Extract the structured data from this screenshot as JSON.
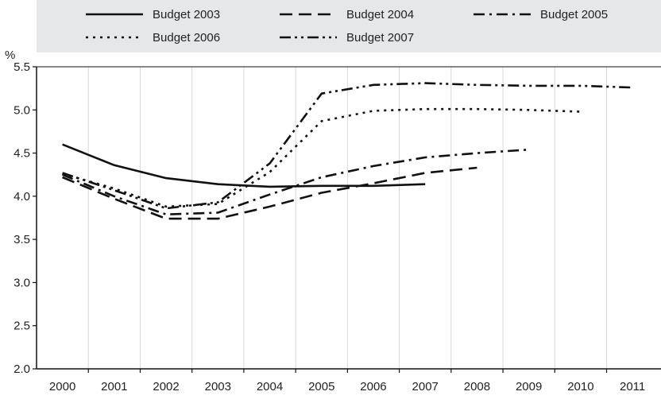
{
  "chart_data": {
    "type": "line",
    "title": "",
    "xlabel": "",
    "ylabel": "%",
    "x": [
      2000,
      2001,
      2002,
      2003,
      2004,
      2005,
      2006,
      2007,
      2008,
      2009,
      2010,
      2011
    ],
    "xlim": [
      2000,
      2011
    ],
    "ylim": [
      2.0,
      5.5
    ],
    "yticks": [
      "2.0",
      "2.5",
      "3.0",
      "3.5",
      "4.0",
      "4.5",
      "5.0",
      "5.5"
    ],
    "xticks": [
      "2000",
      "2001",
      "2002",
      "2003",
      "2004",
      "2005",
      "2006",
      "2007",
      "2008",
      "2009",
      "2010",
      "2011"
    ],
    "grid": "vertical",
    "legend_position": "top",
    "series": [
      {
        "name": "Budget 2003",
        "dash": "solid",
        "color": "#111111",
        "points": [
          [
            2000,
            4.6
          ],
          [
            2001,
            4.36
          ],
          [
            2002,
            4.21
          ],
          [
            2003,
            4.14
          ],
          [
            2004,
            4.11
          ],
          [
            2005,
            4.12
          ],
          [
            2006,
            4.12
          ],
          [
            2007,
            4.14
          ]
        ]
      },
      {
        "name": "Budget 2004",
        "dash": "dash",
        "color": "#111111",
        "points": [
          [
            2000,
            4.22
          ],
          [
            2001,
            3.97
          ],
          [
            2002,
            3.74
          ],
          [
            2003,
            3.74
          ],
          [
            2004,
            3.88
          ],
          [
            2005,
            4.04
          ],
          [
            2006,
            4.15
          ],
          [
            2007,
            4.27
          ],
          [
            2008,
            4.33
          ]
        ]
      },
      {
        "name": "Budget 2005",
        "dash": "dashdot",
        "color": "#111111",
        "points": [
          [
            2000,
            4.25
          ],
          [
            2001,
            4.0
          ],
          [
            2002,
            3.79
          ],
          [
            2003,
            3.81
          ],
          [
            2004,
            4.02
          ],
          [
            2005,
            4.22
          ],
          [
            2006,
            4.35
          ],
          [
            2007,
            4.45
          ],
          [
            2008,
            4.5
          ],
          [
            2009,
            4.54
          ]
        ]
      },
      {
        "name": "Budget 2006",
        "dash": "dot",
        "color": "#111111",
        "points": [
          [
            2000,
            4.26
          ],
          [
            2001,
            4.09
          ],
          [
            2002,
            3.88
          ],
          [
            2003,
            3.91
          ],
          [
            2004,
            4.28
          ],
          [
            2005,
            4.87
          ],
          [
            2006,
            4.99
          ],
          [
            2007,
            5.01
          ],
          [
            2008,
            5.01
          ],
          [
            2009,
            5.0
          ],
          [
            2010,
            4.98
          ]
        ]
      },
      {
        "name": "Budget 2007",
        "dash": "dashdotdot",
        "color": "#111111",
        "points": [
          [
            2000,
            4.27
          ],
          [
            2001,
            4.07
          ],
          [
            2002,
            3.86
          ],
          [
            2003,
            3.93
          ],
          [
            2004,
            4.38
          ],
          [
            2005,
            5.19
          ],
          [
            2006,
            5.29
          ],
          [
            2007,
            5.31
          ],
          [
            2008,
            5.29
          ],
          [
            2009,
            5.28
          ],
          [
            2010,
            5.28
          ],
          [
            2011,
            5.26
          ]
        ]
      }
    ]
  },
  "colors": {
    "legend_bg": "#e6e7e8",
    "axis": "#111111",
    "grid": "#ffffff",
    "plot_bg": "#ffffff"
  }
}
